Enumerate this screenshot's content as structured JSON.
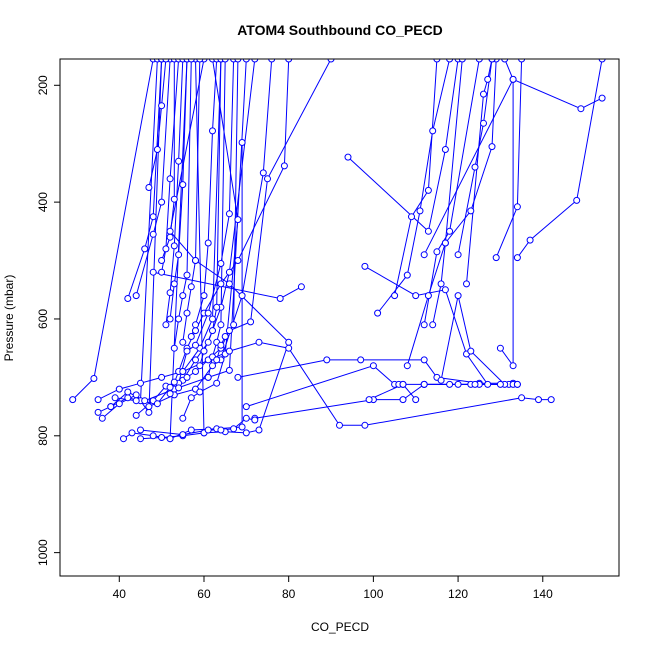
{
  "chart_data": {
    "type": "scatter",
    "title": "ATOM4 Southbound CO_PECD",
    "xlabel": "CO_PECD",
    "ylabel": "Pressure (mbar)",
    "xlim": [
      26,
      158
    ],
    "ylim": [
      1040,
      155
    ],
    "y_reversed": true,
    "grid": false,
    "legend": "none",
    "marker": "open-circle",
    "connect_points": true,
    "color": "#0000ff",
    "xticks": [
      40,
      60,
      80,
      100,
      120,
      140
    ],
    "yticks": [
      200,
      400,
      600,
      800,
      1000
    ],
    "series": [
      {
        "points": [
          [
            29,
            738
          ],
          [
            34,
            702
          ],
          [
            48,
            155
          ]
        ]
      },
      {
        "points": [
          [
            35,
            760
          ],
          [
            38,
            750
          ],
          [
            42,
            735
          ],
          [
            45,
            740
          ],
          [
            49,
            155
          ]
        ]
      },
      {
        "points": [
          [
            36,
            770
          ],
          [
            40,
            745
          ],
          [
            44,
            730
          ],
          [
            47,
            760
          ],
          [
            50,
            155
          ]
        ]
      },
      {
        "points": [
          [
            41,
            805
          ],
          [
            43,
            795
          ],
          [
            48,
            800
          ],
          [
            52,
            805
          ],
          [
            56,
            155
          ]
        ]
      },
      {
        "points": [
          [
            45,
            805
          ],
          [
            50,
            803
          ],
          [
            55,
            800
          ],
          [
            60,
            795
          ],
          [
            58,
            155
          ]
        ]
      },
      {
        "points": [
          [
            52,
            805
          ],
          [
            57,
            790
          ],
          [
            63,
            788
          ],
          [
            69,
            785
          ],
          [
            69,
            298
          ]
        ]
      },
      {
        "points": [
          [
            60,
            795
          ],
          [
            65,
            793
          ],
          [
            70,
            795
          ],
          [
            73,
            790
          ],
          [
            80,
            640
          ],
          [
            66,
            540
          ],
          [
            58,
            500
          ],
          [
            52,
            450
          ],
          [
            60,
            155
          ]
        ]
      },
      {
        "points": [
          [
            35,
            738
          ],
          [
            40,
            720
          ],
          [
            45,
            710
          ],
          [
            50,
            700
          ],
          [
            55,
            690
          ],
          [
            59,
            650
          ],
          [
            62,
            600
          ],
          [
            64,
            155
          ]
        ]
      },
      {
        "points": [
          [
            38,
            750
          ],
          [
            42,
            725
          ],
          [
            46,
            740
          ],
          [
            53,
            720
          ],
          [
            61,
            700
          ],
          [
            66,
            688
          ],
          [
            70,
            155
          ]
        ]
      },
      {
        "points": [
          [
            44,
            765
          ],
          [
            48,
            740
          ],
          [
            51,
            715
          ],
          [
            55,
            705
          ],
          [
            58,
            670
          ],
          [
            61,
            640
          ],
          [
            64,
            580
          ],
          [
            66,
            520
          ],
          [
            72,
            155
          ]
        ]
      },
      {
        "points": [
          [
            47,
            750
          ],
          [
            53,
            730
          ],
          [
            58,
            720
          ],
          [
            62,
            680
          ],
          [
            64,
            670
          ],
          [
            69,
            560
          ],
          [
            74,
            350
          ],
          [
            76,
            155
          ]
        ]
      },
      {
        "points": [
          [
            52,
            728
          ],
          [
            54,
            690
          ],
          [
            56,
            650
          ],
          [
            58,
            620
          ],
          [
            60,
            590
          ],
          [
            64,
            540
          ],
          [
            68,
            500
          ],
          [
            79,
            338
          ],
          [
            80,
            155
          ]
        ]
      },
      {
        "points": [
          [
            54,
            710
          ],
          [
            56,
            655
          ],
          [
            58,
            645
          ],
          [
            61,
            590
          ],
          [
            64,
            505
          ],
          [
            66,
            420
          ],
          [
            67,
            155
          ]
        ]
      },
      {
        "points": [
          [
            55,
            770
          ],
          [
            57,
            735
          ],
          [
            59,
            725
          ],
          [
            63,
            710
          ],
          [
            65,
            660
          ],
          [
            68,
            430
          ],
          [
            62,
            155
          ]
        ]
      },
      {
        "points": [
          [
            56,
            700
          ],
          [
            58,
            690
          ],
          [
            61,
            670
          ],
          [
            64,
            650
          ],
          [
            66,
            620
          ],
          [
            71,
            605
          ],
          [
            75,
            360
          ],
          [
            90,
            155
          ]
        ]
      },
      {
        "points": [
          [
            42,
            565
          ],
          [
            46,
            480
          ],
          [
            48,
            425
          ],
          [
            50,
            155
          ]
        ]
      },
      {
        "points": [
          [
            44,
            560
          ],
          [
            48,
            455
          ],
          [
            50,
            400
          ],
          [
            52,
            155
          ]
        ]
      },
      {
        "points": [
          [
            47,
            375
          ],
          [
            49,
            310
          ],
          [
            50,
            235
          ],
          [
            51,
            155
          ]
        ]
      },
      {
        "points": [
          [
            50,
            500
          ],
          [
            52,
            460
          ],
          [
            53,
            395
          ],
          [
            53,
            155
          ]
        ]
      },
      {
        "points": [
          [
            50,
            520
          ],
          [
            51,
            480
          ],
          [
            52,
            360
          ],
          [
            54,
            155
          ]
        ]
      },
      {
        "points": [
          [
            51,
            610
          ],
          [
            52,
            555
          ],
          [
            53,
            475
          ],
          [
            54,
            330
          ],
          [
            55,
            155
          ]
        ]
      },
      {
        "points": [
          [
            52,
            600
          ],
          [
            53,
            540
          ],
          [
            54,
            490
          ],
          [
            55,
            370
          ],
          [
            56,
            155
          ]
        ]
      },
      {
        "points": [
          [
            53,
            650
          ],
          [
            54,
            600
          ],
          [
            55,
            560
          ],
          [
            56,
            525
          ],
          [
            57,
            155
          ]
        ]
      },
      {
        "points": [
          [
            55,
            640
          ],
          [
            56,
            590
          ],
          [
            57,
            545
          ],
          [
            58,
            500
          ],
          [
            59,
            155
          ]
        ]
      },
      {
        "points": [
          [
            57,
            630
          ],
          [
            58,
            610
          ],
          [
            60,
            560
          ],
          [
            61,
            470
          ],
          [
            62,
            278
          ],
          [
            63,
            155
          ]
        ]
      },
      {
        "points": [
          [
            59,
            680
          ],
          [
            60,
            655
          ],
          [
            62,
            620
          ],
          [
            63,
            580
          ],
          [
            64,
            155
          ]
        ]
      },
      {
        "points": [
          [
            61,
            700
          ],
          [
            62,
            665
          ],
          [
            63,
            640
          ],
          [
            64,
            610
          ],
          [
            65,
            155
          ]
        ]
      },
      {
        "points": [
          [
            63,
            670
          ],
          [
            64,
            645
          ],
          [
            65,
            630
          ],
          [
            67,
            610
          ],
          [
            68,
            155
          ]
        ]
      },
      {
        "points": [
          [
            48,
            520
          ],
          [
            78,
            565
          ],
          [
            83,
            545
          ]
        ]
      },
      {
        "points": [
          [
            55,
            690
          ],
          [
            66,
            655
          ],
          [
            73,
            640
          ],
          [
            80,
            650
          ],
          [
            92,
            782
          ],
          [
            98,
            782
          ],
          [
            135,
            735
          ],
          [
            139,
            738
          ],
          [
            142,
            738
          ]
        ]
      },
      {
        "points": [
          [
            68,
            700
          ],
          [
            89,
            670
          ],
          [
            97,
            670
          ],
          [
            112,
            670
          ],
          [
            115,
            700
          ],
          [
            125,
            710
          ],
          [
            133,
            710
          ]
        ]
      },
      {
        "points": [
          [
            70,
            750
          ],
          [
            100,
            680
          ],
          [
            105,
            712
          ],
          [
            106,
            712
          ],
          [
            107,
            712
          ],
          [
            110,
            738
          ]
        ]
      },
      {
        "points": [
          [
            72,
            770
          ],
          [
            100,
            738
          ],
          [
            107,
            738
          ],
          [
            112,
            712
          ],
          [
            120,
            712
          ],
          [
            125,
            712
          ],
          [
            132,
            712
          ]
        ]
      },
      {
        "points": [
          [
            94,
            323
          ],
          [
            113,
            450
          ],
          [
            117,
            310
          ],
          [
            120,
            155
          ]
        ]
      },
      {
        "points": [
          [
            101,
            590
          ],
          [
            108,
            525
          ],
          [
            111,
            415
          ],
          [
            114,
            278
          ],
          [
            118,
            155
          ]
        ]
      },
      {
        "points": [
          [
            98,
            510
          ],
          [
            110,
            560
          ],
          [
            117,
            550
          ],
          [
            122,
            660
          ],
          [
            127,
            712
          ]
        ]
      },
      {
        "points": [
          [
            105,
            560
          ],
          [
            109,
            425
          ],
          [
            113,
            380
          ],
          [
            115,
            155
          ]
        ]
      },
      {
        "points": [
          [
            112,
            610
          ],
          [
            115,
            485
          ],
          [
            118,
            450
          ],
          [
            125,
            155
          ]
        ]
      },
      {
        "points": [
          [
            114,
            610
          ],
          [
            116,
            540
          ],
          [
            117,
            470
          ],
          [
            121,
            155
          ]
        ]
      },
      {
        "points": [
          [
            116,
            705
          ],
          [
            120,
            560
          ],
          [
            123,
            655
          ],
          [
            131,
            712
          ],
          [
            133,
            712
          ]
        ]
      },
      {
        "points": [
          [
            108,
            680
          ],
          [
            113,
            560
          ],
          [
            117,
            470
          ],
          [
            123,
            415
          ],
          [
            128,
            305
          ],
          [
            129,
            155
          ]
        ]
      },
      {
        "points": [
          [
            120,
            490
          ],
          [
            124,
            340
          ],
          [
            126,
            265
          ],
          [
            128,
            155
          ]
        ]
      },
      {
        "points": [
          [
            122,
            540
          ],
          [
            126,
            215
          ],
          [
            127,
            190
          ],
          [
            128,
            155
          ]
        ]
      },
      {
        "points": [
          [
            129,
            495
          ],
          [
            134,
            408
          ],
          [
            135,
            155
          ]
        ]
      },
      {
        "points": [
          [
            130,
            650
          ],
          [
            133,
            680
          ],
          [
            133,
            190
          ],
          [
            131,
            155
          ]
        ]
      },
      {
        "points": [
          [
            134,
            495
          ],
          [
            137,
            465
          ],
          [
            148,
            397
          ],
          [
            154,
            155
          ]
        ]
      },
      {
        "points": [
          [
            112,
            490
          ],
          [
            133,
            190
          ],
          [
            149,
            240
          ],
          [
            154,
            222
          ]
        ]
      },
      {
        "points": [
          [
            99,
            738
          ],
          [
            107,
            712
          ],
          [
            112,
            712
          ],
          [
            118,
            712
          ],
          [
            123,
            712
          ],
          [
            134,
            712
          ]
        ]
      },
      {
        "points": [
          [
            112,
            712
          ],
          [
            124,
            712
          ],
          [
            130,
            712
          ],
          [
            134,
            712
          ]
        ]
      },
      {
        "points": [
          [
            45,
            790
          ],
          [
            55,
            798
          ],
          [
            61,
            790
          ],
          [
            64,
            790
          ],
          [
            67,
            788
          ],
          [
            70,
            770
          ],
          [
            72,
            773
          ]
        ]
      },
      {
        "points": [
          [
            39,
            735
          ],
          [
            44,
            740
          ],
          [
            49,
            745
          ],
          [
            52,
            717
          ],
          [
            53,
            708
          ],
          [
            54,
            718
          ]
        ]
      }
    ]
  }
}
